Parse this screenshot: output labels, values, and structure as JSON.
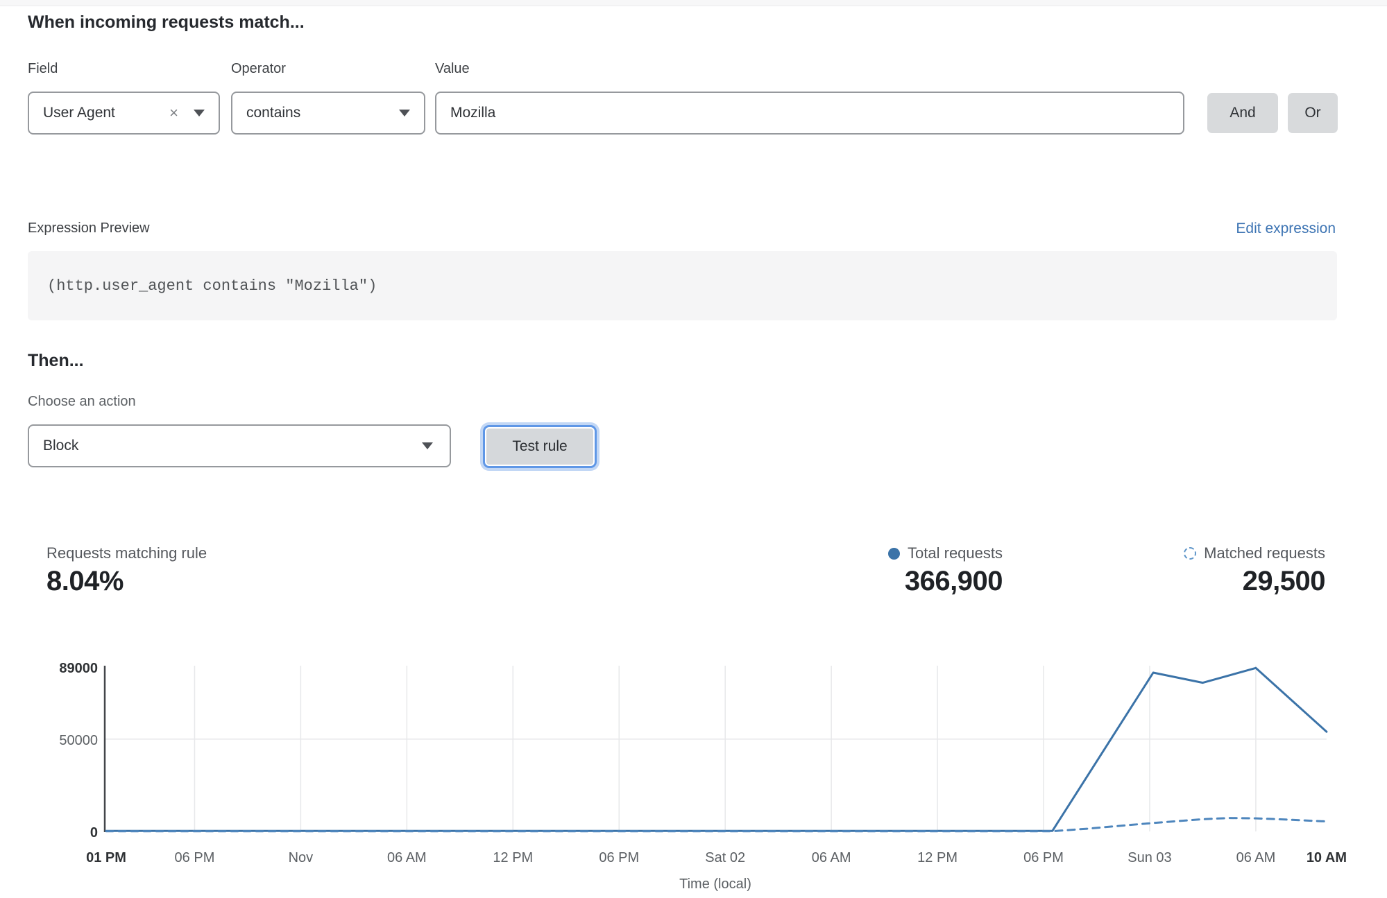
{
  "header": {
    "title": "When incoming requests match..."
  },
  "rule_builder": {
    "field_label": "Field",
    "operator_label": "Operator",
    "value_label": "Value",
    "field_value": "User Agent",
    "clear_icon": "×",
    "operator_value": "contains",
    "value_value": "Mozilla",
    "and_label": "And",
    "or_label": "Or"
  },
  "expression": {
    "preview_label": "Expression Preview",
    "edit_link": "Edit expression",
    "code": "(http.user_agent contains \"Mozilla\")"
  },
  "action": {
    "then_title": "Then...",
    "choose_label": "Choose an action",
    "selected_action": "Block",
    "test_rule_label": "Test rule"
  },
  "stats": {
    "matching_label": "Requests matching rule",
    "matching_value": "8.04%",
    "total_label": "Total requests",
    "total_value": "366,900",
    "matched_label": "Matched requests",
    "matched_value": "29,500"
  },
  "colors": {
    "accent_blue": "#3b73a8",
    "dashed_blue": "#4e86bd",
    "link_blue": "#3d74b3",
    "focus_ring": "#5f97e6",
    "grid": "#e7e8ea",
    "axis": "#43464a",
    "tick_gray": "#5c6064",
    "tick_bold": "#2f3235"
  },
  "chart_data": {
    "type": "line",
    "title": "",
    "xlabel": "Time (local)",
    "ylabel": "",
    "ylim": [
      0,
      89000
    ],
    "hours_span": 69,
    "grid": true,
    "legend_position": "top-right",
    "yticks": [
      {
        "value": 89000,
        "label": "89000",
        "bold": true,
        "grid": false
      },
      {
        "value": 50000,
        "label": "50000",
        "bold": false,
        "grid": true
      },
      {
        "value": 0,
        "label": "0",
        "bold": true,
        "grid": false
      }
    ],
    "xticks": [
      {
        "label": "01 PM",
        "hour": 0,
        "bold": true
      },
      {
        "label": "06 PM",
        "hour": 5,
        "bold": false
      },
      {
        "label": "Nov",
        "hour": 11,
        "bold": false
      },
      {
        "label": "06 AM",
        "hour": 17,
        "bold": false
      },
      {
        "label": "12 PM",
        "hour": 23,
        "bold": false
      },
      {
        "label": "06 PM",
        "hour": 29,
        "bold": false
      },
      {
        "label": "Sat 02",
        "hour": 35,
        "bold": false
      },
      {
        "label": "06 AM",
        "hour": 41,
        "bold": false
      },
      {
        "label": "12 PM",
        "hour": 47,
        "bold": false
      },
      {
        "label": "06 PM",
        "hour": 53,
        "bold": false
      },
      {
        "label": "Sun 03",
        "hour": 59,
        "bold": false
      },
      {
        "label": "06 AM",
        "hour": 65,
        "bold": false
      },
      {
        "label": "10 AM",
        "hour": 69,
        "bold": true
      }
    ],
    "series": [
      {
        "name": "Total requests",
        "style": "solid",
        "color": "#3b73a8",
        "points": [
          [
            0,
            300
          ],
          [
            53.5,
            300
          ],
          [
            59.2,
            86000
          ],
          [
            62,
            80500
          ],
          [
            65,
            88500
          ],
          [
            69,
            54000
          ]
        ]
      },
      {
        "name": "Matched requests",
        "style": "dashed",
        "color": "#4e86bd",
        "points": [
          [
            0,
            120
          ],
          [
            53.5,
            120
          ],
          [
            55.5,
            1500
          ],
          [
            58,
            3600
          ],
          [
            60,
            5200
          ],
          [
            62,
            6600
          ],
          [
            63.5,
            7300
          ],
          [
            65,
            7100
          ],
          [
            67,
            6300
          ],
          [
            69,
            5400
          ]
        ]
      }
    ]
  }
}
